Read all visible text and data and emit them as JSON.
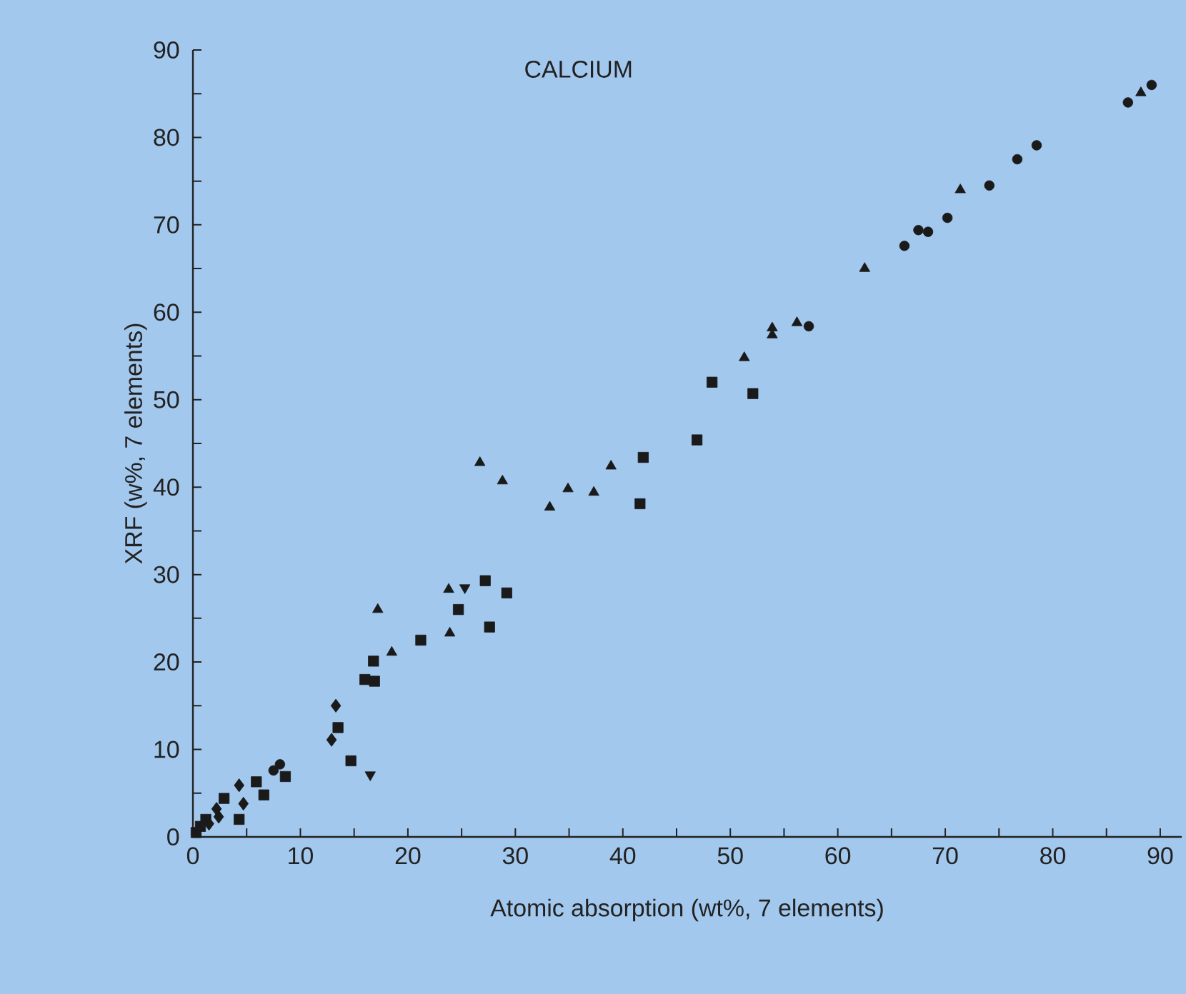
{
  "chart_data": {
    "type": "scatter",
    "title": "CALCIUM",
    "xlabel": "Atomic absorption (wt%, 7 elements)",
    "ylabel": "XRF (w%, 7 elements)",
    "xlim": [
      0,
      92
    ],
    "ylim": [
      0,
      90
    ],
    "xticks": [
      0,
      {
        "value": 5,
        "label": null
      },
      10,
      {
        "value": 15,
        "label": null
      },
      20,
      {
        "value": 25,
        "label": null
      },
      30,
      {
        "value": 35,
        "label": null
      },
      40,
      {
        "value": 45,
        "label": null
      },
      50,
      {
        "value": 55,
        "label": null
      },
      60,
      {
        "value": 65,
        "label": null
      },
      70,
      {
        "value": 75,
        "label": null
      },
      80,
      {
        "value": 85,
        "label": null
      },
      90
    ],
    "yticks": [
      0,
      {
        "value": 5,
        "label": null
      },
      10,
      {
        "value": 15,
        "label": null
      },
      20,
      {
        "value": 25,
        "label": null
      },
      30,
      {
        "value": 35,
        "label": null
      },
      40,
      {
        "value": 45,
        "label": null
      },
      50,
      {
        "value": 55,
        "label": null
      },
      60,
      {
        "value": 65,
        "label": null
      },
      70,
      {
        "value": 75,
        "label": null
      },
      80,
      {
        "value": 85,
        "label": null
      },
      90
    ],
    "series": [
      {
        "marker": "circle",
        "color": "#1a1a1a",
        "x": [
          7.5,
          8.1,
          57.3,
          66.2,
          67.5,
          68.4,
          70.2,
          74.1,
          76.7,
          78.5,
          87.0,
          89.2
        ],
        "values": [
          7.6,
          8.3,
          58.4,
          67.6,
          69.4,
          69.2,
          70.8,
          74.5,
          77.5,
          79.1,
          84.0,
          86.0
        ]
      },
      {
        "marker": "triangle",
        "color": "#1a1a1a",
        "x": [
          17.2,
          18.5,
          23.8,
          23.9,
          26.7,
          28.8,
          33.2,
          34.9,
          37.3,
          38.9,
          51.3,
          53.9,
          53.9,
          56.2,
          62.5,
          71.4,
          88.2
        ],
        "values": [
          26.0,
          21.1,
          28.3,
          23.3,
          42.8,
          40.7,
          37.7,
          39.8,
          39.4,
          42.4,
          54.8,
          58.2,
          57.4,
          58.8,
          65.0,
          74.0,
          85.1
        ]
      },
      {
        "marker": "square",
        "color": "#1a1a1a",
        "x": [
          0.3,
          0.7,
          1.2,
          2.9,
          4.3,
          5.9,
          6.6,
          8.6,
          14.7,
          13.5,
          16.0,
          16.9,
          16.8,
          21.2,
          24.7,
          27.2,
          27.6,
          29.2,
          41.6,
          41.9,
          46.9,
          48.3,
          52.1
        ],
        "values": [
          0.5,
          1.2,
          2.0,
          4.4,
          2.0,
          6.3,
          4.8,
          6.9,
          8.7,
          12.5,
          18.0,
          17.8,
          20.1,
          22.5,
          26.0,
          29.3,
          24.0,
          27.9,
          38.1,
          43.4,
          45.4,
          52.0,
          50.7
        ]
      },
      {
        "marker": "diamond",
        "color": "#1a1a1a",
        "x": [
          1.5,
          2.4,
          2.2,
          4.3,
          4.7,
          12.9,
          13.3
        ],
        "values": [
          1.5,
          2.3,
          3.2,
          5.9,
          3.8,
          11.1,
          15.0
        ]
      },
      {
        "marker": "triangle-down",
        "color": "#1a1a1a",
        "x": [
          16.5,
          25.3
        ],
        "values": [
          7.1,
          28.5
        ]
      }
    ]
  }
}
